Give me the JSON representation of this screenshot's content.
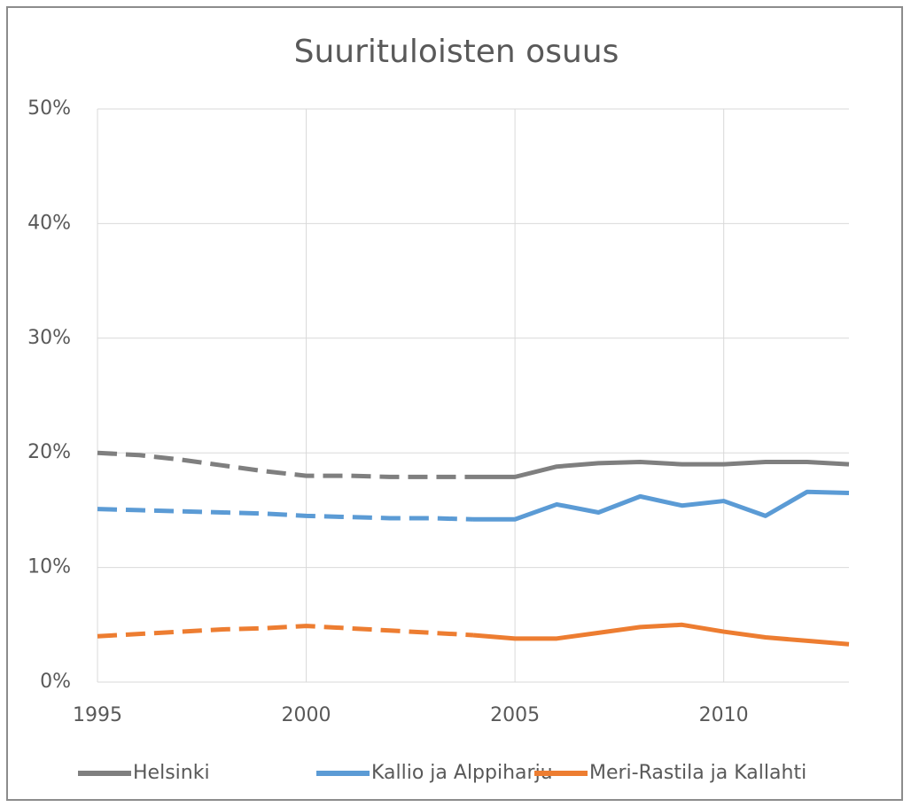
{
  "chart_data": {
    "type": "line",
    "title": "Suurituloisten osuus",
    "x": [
      1995,
      1996,
      1997,
      1998,
      1999,
      2000,
      2001,
      2002,
      2003,
      2004,
      2005,
      2006,
      2007,
      2008,
      2009,
      2010,
      2011,
      2012,
      2013
    ],
    "dashed_through": 2004,
    "series": [
      {
        "name": "Helsinki",
        "color": "#7f7f7f",
        "values": [
          20.0,
          19.8,
          19.4,
          18.9,
          18.4,
          18.0,
          18.0,
          17.9,
          17.9,
          17.9,
          17.9,
          18.8,
          19.1,
          19.2,
          19.0,
          19.0,
          19.2,
          19.2,
          19.0
        ]
      },
      {
        "name": "Kallio ja Alppiharju",
        "color": "#5b9bd5",
        "values": [
          15.1,
          15.0,
          14.9,
          14.8,
          14.7,
          14.5,
          14.4,
          14.3,
          14.3,
          14.2,
          14.2,
          15.5,
          14.8,
          16.2,
          15.4,
          15.8,
          14.5,
          16.6,
          16.5
        ]
      },
      {
        "name": "Meri-Rastila ja Kallahti",
        "color": "#ed7d31",
        "values": [
          4.0,
          4.2,
          4.4,
          4.6,
          4.7,
          4.9,
          4.7,
          4.5,
          4.3,
          4.1,
          3.8,
          3.8,
          4.3,
          4.8,
          5.0,
          4.4,
          3.9,
          3.6,
          3.3
        ]
      }
    ],
    "xlim": [
      1995,
      2013
    ],
    "xticks": [
      1995,
      2000,
      2005,
      2010
    ],
    "ylim": [
      0,
      50
    ],
    "yticks": [
      {
        "value": 0,
        "label": "0%"
      },
      {
        "value": 10,
        "label": "10%"
      },
      {
        "value": 20,
        "label": "20%"
      },
      {
        "value": 30,
        "label": "30%"
      },
      {
        "value": 40,
        "label": "40%"
      },
      {
        "value": 50,
        "label": "50%"
      }
    ],
    "grid": true,
    "legend": "bottom"
  }
}
